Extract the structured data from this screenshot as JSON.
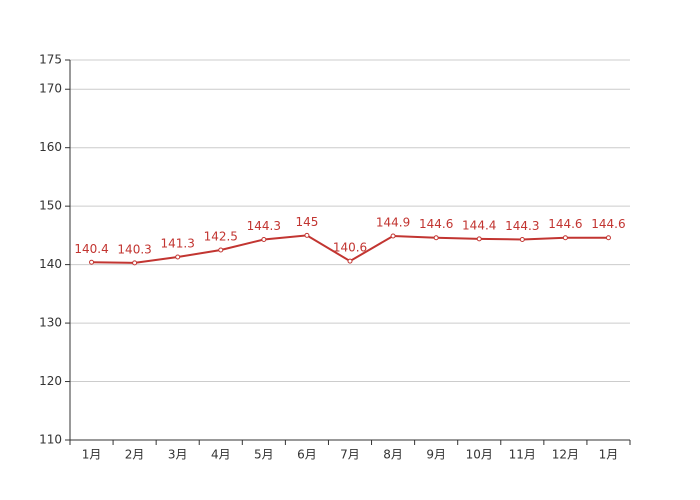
{
  "chart_data": {
    "type": "line",
    "categories": [
      "1月",
      "2月",
      "3月",
      "4月",
      "5月",
      "6月",
      "7月",
      "8月",
      "9月",
      "10月",
      "11月",
      "12月",
      "1月"
    ],
    "series": [
      {
        "color": "#c23531",
        "values": [
          140.4,
          140.3,
          141.3,
          142.5,
          144.3,
          145,
          140.6,
          144.9,
          144.6,
          144.4,
          144.3,
          144.6,
          144.6
        ]
      }
    ],
    "ylim": [
      110,
      175
    ],
    "yticks": [
      110,
      120,
      130,
      140,
      150,
      160,
      170,
      175
    ],
    "grid": true
  }
}
